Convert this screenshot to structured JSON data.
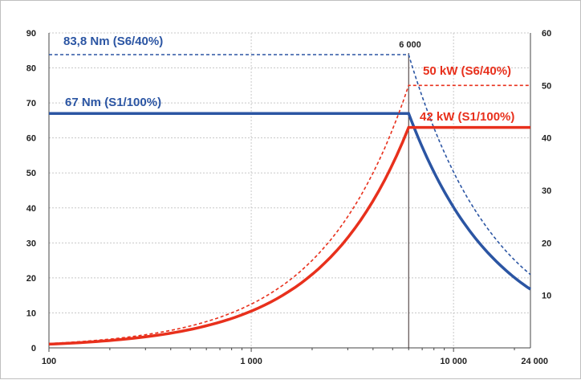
{
  "chart_data": {
    "type": "line",
    "title": "",
    "xlabel": "",
    "ylabel": "",
    "y2label": "",
    "x_scale": "log",
    "xlim": [
      100,
      24000
    ],
    "ylim": [
      0,
      90
    ],
    "y2lim": [
      0,
      60
    ],
    "grid": true,
    "x_ticks": [
      {
        "value": 100,
        "label": "100"
      },
      {
        "value": 1000,
        "label": "1 000"
      },
      {
        "value": 10000,
        "label": "10 000"
      },
      {
        "value": 24000,
        "label": "24 000"
      }
    ],
    "y_ticks": [
      0,
      10,
      20,
      30,
      40,
      50,
      60,
      70,
      80,
      90
    ],
    "y2_ticks": [
      10,
      20,
      30,
      40,
      50,
      60
    ],
    "base_speed": {
      "value": 6000,
      "label": "6 000"
    },
    "series": [
      {
        "name": "83,8 Nm (S6/40%)",
        "axis": "left",
        "color": "#2b55a3",
        "style": "dashed",
        "x": [
          100,
          6000,
          8000,
          12000,
          16000,
          24000
        ],
        "y": [
          83.8,
          83.8,
          62.9,
          41.9,
          31.4,
          20.9
        ]
      },
      {
        "name": "67 Nm (S1/100%)",
        "axis": "left",
        "color": "#2b55a3",
        "style": "solid",
        "x": [
          100,
          6000,
          8000,
          12000,
          16000,
          24000
        ],
        "y": [
          67,
          67,
          50.3,
          33.5,
          25.1,
          16.8
        ]
      },
      {
        "name": "50 kW (S6/40%)",
        "axis": "right",
        "color": "#e8301c",
        "style": "dashed",
        "x": [
          100,
          200,
          500,
          1000,
          2000,
          3000,
          4000,
          5000,
          6000,
          24000
        ],
        "y": [
          0.9,
          1.7,
          4.3,
          8.3,
          16.7,
          25,
          33.3,
          41.7,
          50,
          50
        ]
      },
      {
        "name": "42 kW (S1/100%)",
        "axis": "right",
        "color": "#e8301c",
        "style": "solid",
        "x": [
          100,
          200,
          500,
          1000,
          2000,
          3000,
          4000,
          5000,
          6000,
          24000
        ],
        "y": [
          0.7,
          1.4,
          3.5,
          7,
          14,
          21,
          28,
          35,
          42,
          42
        ]
      }
    ],
    "annotations": [
      {
        "text": "83,8 Nm (S6/40%)",
        "color": "#2b55a3"
      },
      {
        "text": "67 Nm (S1/100%)",
        "color": "#2b55a3"
      },
      {
        "text": "50 kW (S6/40%)",
        "color": "#e8301c"
      },
      {
        "text": "42 kW (S1/100%)",
        "color": "#e8301c"
      }
    ]
  }
}
